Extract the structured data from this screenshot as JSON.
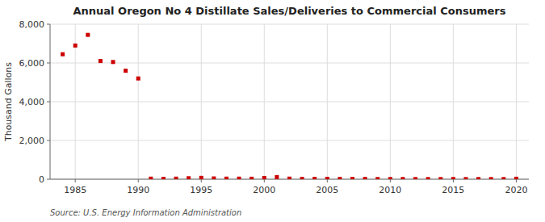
{
  "chart_data": {
    "type": "scatter",
    "title": "Annual Oregon No 4 Distillate Sales/Deliveries to Commercial Consumers",
    "ylabel": "Thousand Gallons",
    "source": "Source: U.S. Energy Information Administration",
    "color": "#cc0000",
    "marker": "square",
    "grid": true,
    "xlim": [
      1983,
      2021
    ],
    "ylim": [
      0,
      8000
    ],
    "xticks": [
      1985,
      1990,
      1995,
      2000,
      2005,
      2010,
      2015,
      2020
    ],
    "yticks": [
      0,
      {
        "value": 2000,
        "label": "2,000"
      },
      {
        "value": 4000,
        "label": "4,000"
      },
      {
        "value": 6000,
        "label": "6,000"
      },
      {
        "value": 8000,
        "label": "8,000"
      }
    ],
    "x": [
      1984,
      1985,
      1986,
      1987,
      1988,
      1989,
      1990,
      1991,
      1992,
      1993,
      1994,
      1995,
      1996,
      1997,
      1998,
      1999,
      2000,
      2001,
      2002,
      2003,
      2004,
      2005,
      2006,
      2007,
      2008,
      2009,
      2010,
      2011,
      2012,
      2013,
      2014,
      2015,
      2016,
      2017,
      2018,
      2019,
      2020
    ],
    "values": [
      6450,
      6900,
      7450,
      6100,
      6050,
      5600,
      5200,
      30,
      20,
      30,
      50,
      70,
      40,
      30,
      30,
      25,
      60,
      110,
      30,
      15,
      20,
      20,
      15,
      15,
      15,
      10,
      10,
      10,
      8,
      8,
      8,
      10,
      8,
      8,
      8,
      8,
      25
    ]
  }
}
